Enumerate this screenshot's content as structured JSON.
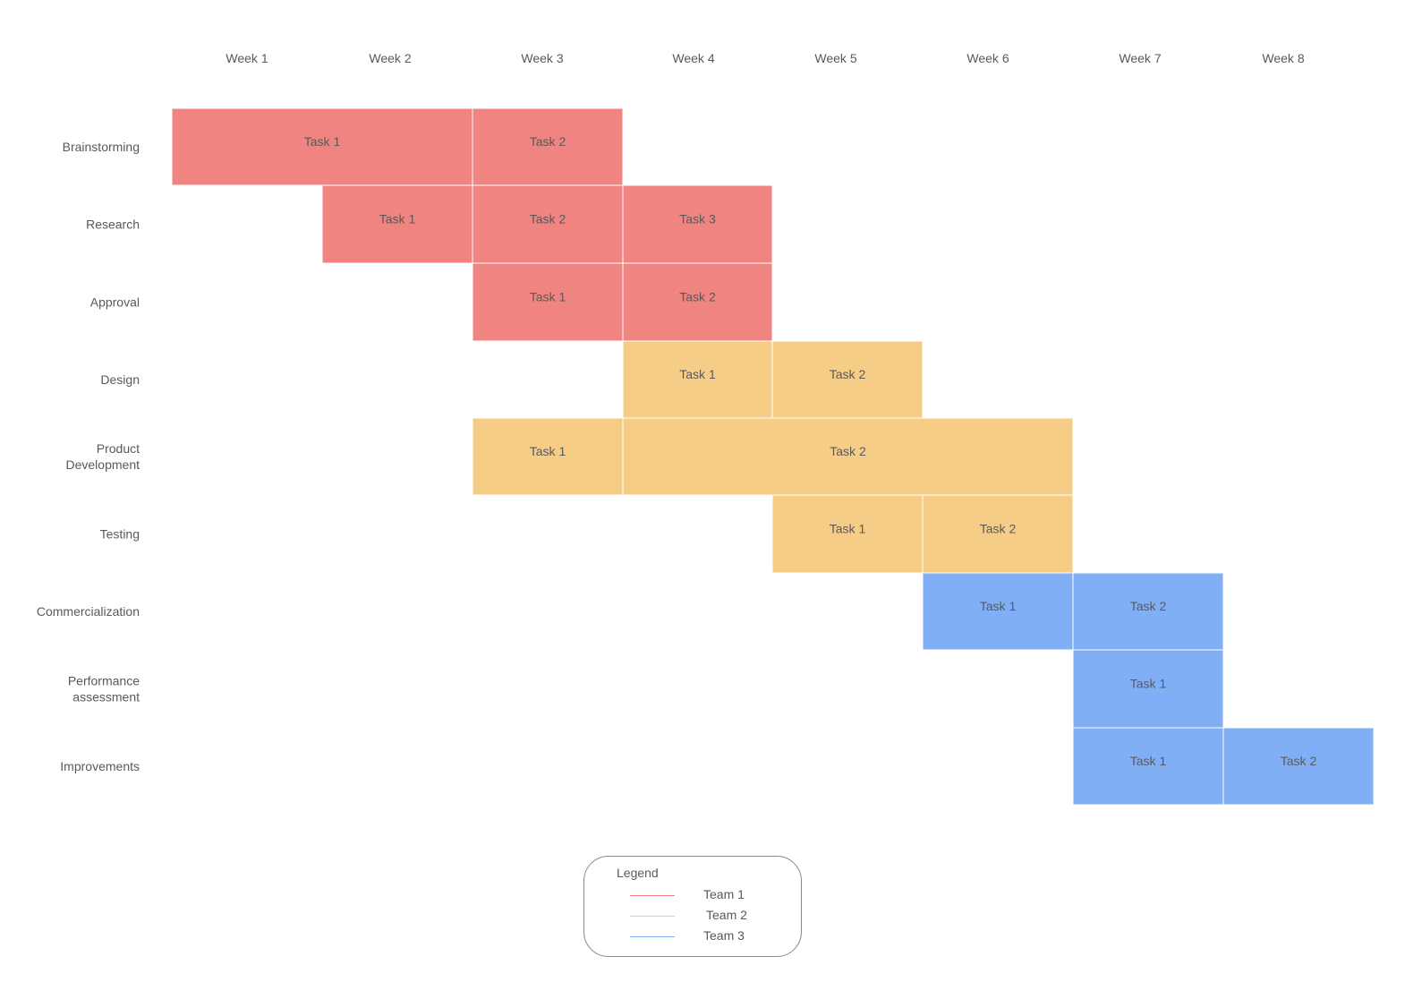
{
  "chart_data": {
    "type": "gantt",
    "weeks": [
      "Week 1",
      "Week 2",
      "Week 3",
      "Week 4",
      "Week 5",
      "Week 6",
      "Week  7",
      "Week 8"
    ],
    "phases": [
      {
        "label": [
          "Brainstorming"
        ],
        "team": "Team 1",
        "tasks": [
          {
            "label": "Task 1",
            "start_week": 1,
            "end_week": 2
          },
          {
            "label": "Task 2",
            "start_week": 3,
            "end_week": 3
          }
        ]
      },
      {
        "label": [
          "Research"
        ],
        "team": "Team 1",
        "tasks": [
          {
            "label": "Task 1",
            "start_week": 2,
            "end_week": 2
          },
          {
            "label": "Task 2",
            "start_week": 3,
            "end_week": 3
          },
          {
            "label": "Task 3",
            "start_week": 4,
            "end_week": 4
          }
        ]
      },
      {
        "label": [
          "Approval"
        ],
        "team": "Team 1",
        "tasks": [
          {
            "label": "Task 1",
            "start_week": 3,
            "end_week": 3
          },
          {
            "label": "Task 2",
            "start_week": 4,
            "end_week": 4
          }
        ]
      },
      {
        "label": [
          "Design"
        ],
        "team": "Team 2",
        "tasks": [
          {
            "label": "Task 1",
            "start_week": 4,
            "end_week": 4
          },
          {
            "label": "Task 2",
            "start_week": 5,
            "end_week": 5
          }
        ]
      },
      {
        "label": [
          "Product",
          "Development"
        ],
        "team": "Team 2",
        "tasks": [
          {
            "label": "Task 1",
            "start_week": 3,
            "end_week": 3
          },
          {
            "label": "Task 2",
            "start_week": 4,
            "end_week": 6
          }
        ]
      },
      {
        "label": [
          "Testing"
        ],
        "team": "Team 2",
        "tasks": [
          {
            "label": "Task 1",
            "start_week": 5,
            "end_week": 5
          },
          {
            "label": "Task 2",
            "start_week": 6,
            "end_week": 6
          }
        ]
      },
      {
        "label": [
          "Commercialization"
        ],
        "team": "Team 3",
        "tasks": [
          {
            "label": "Task 1",
            "start_week": 6,
            "end_week": 6
          },
          {
            "label": "Task 2",
            "start_week": 7,
            "end_week": 7
          }
        ]
      },
      {
        "label": [
          "Performance",
          "assessment"
        ],
        "team": "Team 3",
        "tasks": [
          {
            "label": "Task 1",
            "start_week": 7,
            "end_week": 7
          }
        ]
      },
      {
        "label": [
          "Improvements"
        ],
        "team": "Team 3",
        "tasks": [
          {
            "label": "Task 1",
            "start_week": 7,
            "end_week": 7
          },
          {
            "label": "Task 2",
            "start_week": 8,
            "end_week": 8
          }
        ]
      }
    ],
    "team_colors": {
      "Team 1": "#ef8481",
      "Team 2": "#f6cd86",
      "Team 3": "#80aff5"
    }
  },
  "legend": {
    "title": "Legend",
    "items": [
      {
        "label": "Team 1",
        "color": "#ef8481"
      },
      {
        "label": "Team 2",
        "color": "#f6cd86"
      },
      {
        "label": "Team 3",
        "color": "#80aff5"
      }
    ]
  }
}
